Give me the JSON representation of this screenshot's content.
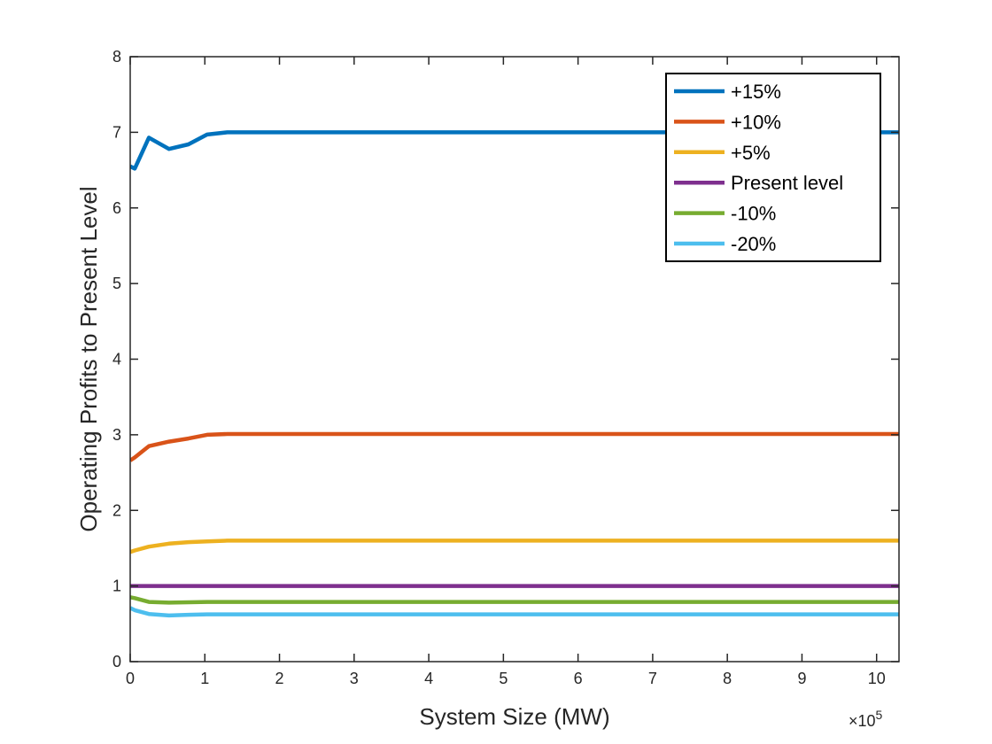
{
  "chart_data": {
    "type": "line",
    "xlabel": "System Size (MW)",
    "ylabel": "Operating Profits to Present Level",
    "x_exponent": {
      "base": "×10",
      "power": "5"
    },
    "xlim": [
      0,
      10.3
    ],
    "ylim": [
      0,
      8
    ],
    "xticks": [
      "0",
      "1",
      "2",
      "3",
      "4",
      "5",
      "6",
      "7",
      "8",
      "9",
      "10"
    ],
    "yticks": [
      "0",
      "1",
      "2",
      "3",
      "4",
      "5",
      "6",
      "7",
      "8"
    ],
    "grid": false,
    "legend_position": "top-right",
    "series": [
      {
        "name": "+15%",
        "color": "#0072BD",
        "x": [
          0,
          0.06,
          0.25,
          0.52,
          0.78,
          1.03,
          1.3,
          1.8,
          3,
          5,
          7,
          9,
          10.3
        ],
        "y": [
          6.55,
          6.52,
          6.93,
          6.78,
          6.84,
          6.97,
          7.0,
          7.0,
          7.0,
          7.0,
          7.0,
          7.0,
          7.0
        ]
      },
      {
        "name": "+10%",
        "color": "#D95319",
        "x": [
          0,
          0.06,
          0.25,
          0.52,
          0.78,
          1.03,
          1.3,
          1.8,
          3,
          5,
          7,
          9,
          10.3
        ],
        "y": [
          2.66,
          2.7,
          2.85,
          2.91,
          2.95,
          3.0,
          3.01,
          3.01,
          3.01,
          3.01,
          3.01,
          3.01,
          3.01
        ]
      },
      {
        "name": "+5%",
        "color": "#EDB120",
        "x": [
          0,
          0.06,
          0.25,
          0.52,
          0.78,
          1.03,
          1.3,
          1.8,
          3,
          5,
          7,
          9,
          10.3
        ],
        "y": [
          1.45,
          1.47,
          1.52,
          1.56,
          1.58,
          1.59,
          1.6,
          1.6,
          1.6,
          1.6,
          1.6,
          1.6,
          1.6
        ]
      },
      {
        "name": "Present level",
        "color": "#7E2F8E",
        "x": [
          0,
          10.3
        ],
        "y": [
          1.0,
          1.0
        ]
      },
      {
        "name": "-10%",
        "color": "#77AC30",
        "x": [
          0,
          0.06,
          0.25,
          0.52,
          0.78,
          1.03,
          1.3,
          1.8,
          3,
          5,
          7,
          9,
          10.3
        ],
        "y": [
          0.85,
          0.84,
          0.79,
          0.78,
          0.785,
          0.79,
          0.79,
          0.79,
          0.79,
          0.79,
          0.79,
          0.79,
          0.79
        ]
      },
      {
        "name": "-20%",
        "color": "#4DBEEE",
        "x": [
          0,
          0.06,
          0.25,
          0.52,
          0.78,
          1.03,
          1.3,
          1.8,
          3,
          5,
          7,
          9,
          10.3
        ],
        "y": [
          0.71,
          0.68,
          0.63,
          0.61,
          0.62,
          0.625,
          0.625,
          0.625,
          0.625,
          0.625,
          0.625,
          0.625,
          0.625
        ]
      }
    ]
  }
}
